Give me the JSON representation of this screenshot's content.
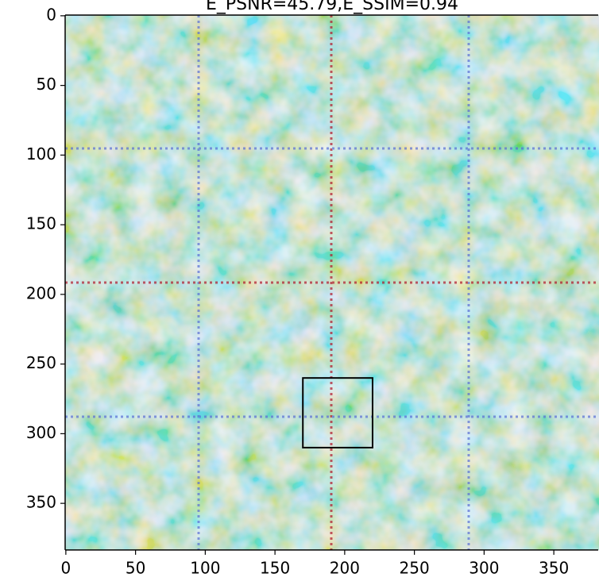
{
  "chart_data": {
    "type": "image",
    "title": "E_PSNR=45.79,E_SSIM=0.94",
    "colormap": "coolwarm",
    "xlim": [
      -0.5,
      383.5
    ],
    "ylim": [
      383.5,
      -0.5
    ],
    "xticks": [
      0,
      50,
      100,
      150,
      200,
      250,
      300,
      350
    ],
    "yticks": [
      0,
      50,
      100,
      150,
      200,
      250,
      300,
      350
    ],
    "box": {
      "x": [
        170,
        220
      ],
      "y": [
        260,
        310
      ]
    }
  }
}
